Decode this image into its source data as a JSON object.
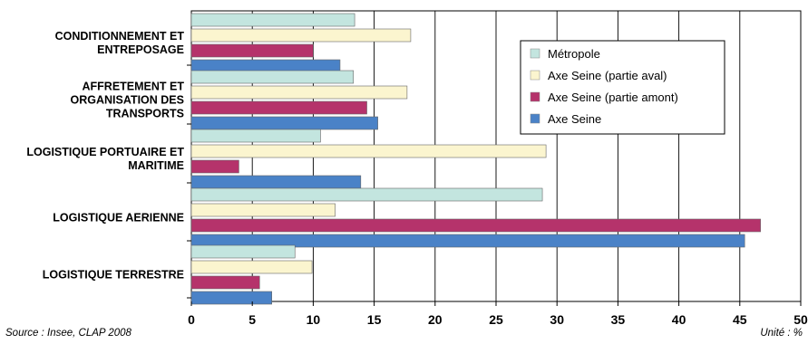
{
  "chart_data": {
    "type": "bar",
    "orientation": "horizontal",
    "categories": [
      [
        "CONDITIONNEMENT ET",
        "ENTREPOSAGE"
      ],
      [
        "AFFRETEMENT ET",
        "ORGANISATION DES",
        "TRANSPORTS"
      ],
      [
        "LOGISTIQUE PORTUAIRE ET",
        "MARITIME"
      ],
      [
        "LOGISTIQUE AERIENNE"
      ],
      [
        "LOGISTIQUE TERRESTRE"
      ]
    ],
    "series": [
      {
        "name": "Métropole",
        "color": "#c3e5df",
        "values": [
          13.4,
          13.3,
          10.6,
          28.8,
          8.5
        ]
      },
      {
        "name": "Axe Seine (partie aval)",
        "color": "#fbf5cf",
        "values": [
          18.0,
          17.7,
          29.1,
          11.8,
          9.9
        ]
      },
      {
        "name": "Axe Seine (partie amont)",
        "color": "#b5336b",
        "values": [
          10.0,
          14.4,
          3.9,
          46.7,
          5.6
        ]
      },
      {
        "name": "Axe Seine",
        "color": "#4a82c7",
        "values": [
          12.2,
          15.3,
          13.9,
          45.4,
          6.6
        ]
      }
    ],
    "xlim": [
      0,
      50
    ],
    "xticks": [
      "0",
      "5",
      "10",
      "15",
      "20",
      "25",
      "30",
      "35",
      "40",
      "45",
      "50"
    ],
    "grid": true,
    "legend_position": "top-right"
  },
  "footer": {
    "source": "Source : Insee, CLAP 2008",
    "unit": "Unité : %"
  }
}
